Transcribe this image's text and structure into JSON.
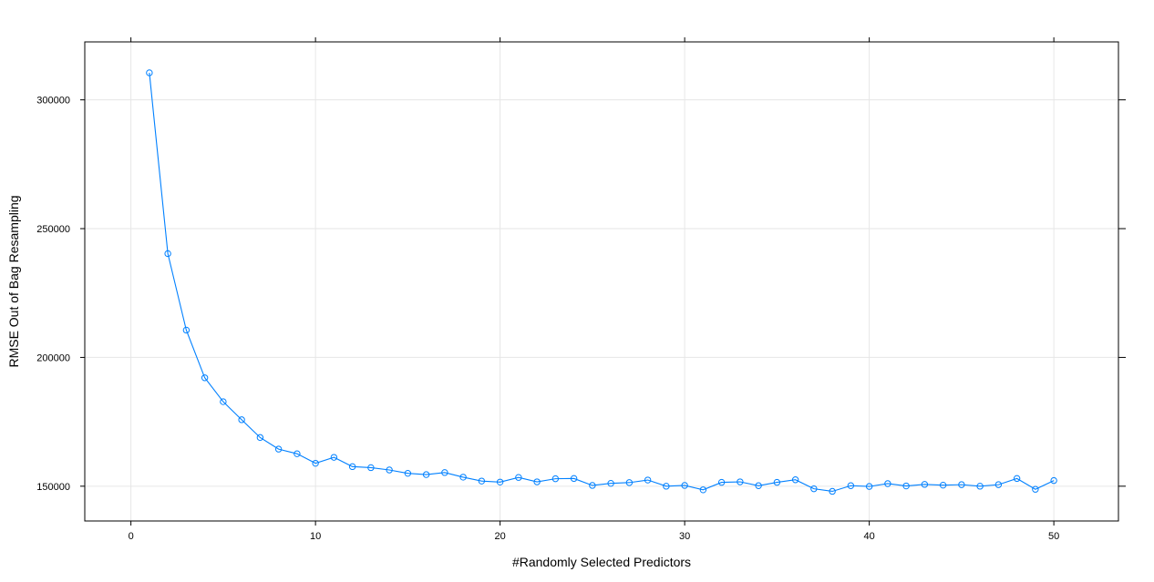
{
  "chart_data": {
    "type": "line",
    "title": "",
    "xlabel": "#Randomly Selected Predictors",
    "ylabel": "RMSE Out of Bag Resampling",
    "xlim": [
      -2.5,
      53.5
    ],
    "ylim": [
      136500,
      322500
    ],
    "xticks": [
      0,
      10,
      20,
      30,
      40,
      50
    ],
    "yticks": [
      150000,
      200000,
      250000,
      300000
    ],
    "grid": true,
    "series": [
      {
        "color": "#0080ff",
        "marker": "open-circle",
        "x": [
          1,
          2,
          3,
          4,
          5,
          6,
          7,
          8,
          9,
          10,
          11,
          12,
          13,
          14,
          15,
          16,
          17,
          18,
          19,
          20,
          21,
          22,
          23,
          24,
          25,
          26,
          27,
          28,
          29,
          30,
          31,
          32,
          33,
          34,
          35,
          36,
          37,
          38,
          39,
          40,
          41,
          42,
          43,
          44,
          45,
          46,
          47,
          48,
          49,
          50
        ],
        "values": [
          310500,
          240300,
          210600,
          192100,
          182800,
          175800,
          168900,
          164400,
          162600,
          158900,
          161200,
          157600,
          157200,
          156300,
          155000,
          154500,
          155300,
          153500,
          152000,
          151600,
          153400,
          151700,
          152900,
          153000,
          150300,
          151100,
          151400,
          152400,
          150000,
          150300,
          148600,
          151500,
          151700,
          150200,
          151500,
          152500,
          149000,
          148000,
          150200,
          149900,
          151000,
          150100,
          150700,
          150400,
          150600,
          150000,
          150600,
          153000,
          148800,
          152200
        ]
      }
    ]
  }
}
